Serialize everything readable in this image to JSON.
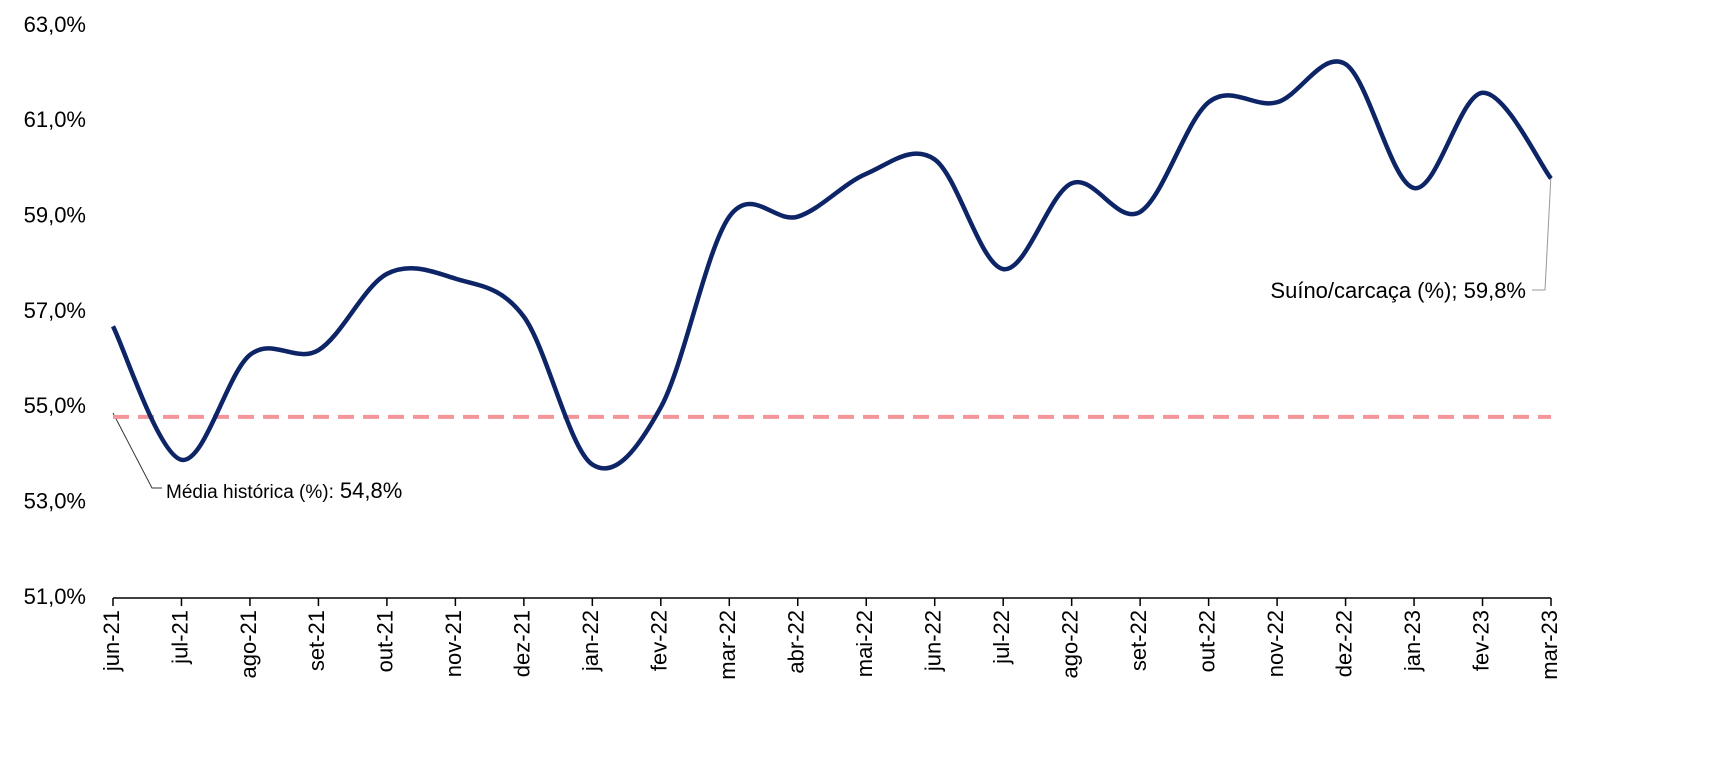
{
  "chart_data": {
    "type": "line",
    "categories": [
      "jun-21",
      "jul-21",
      "ago-21",
      "set-21",
      "out-21",
      "nov-21",
      "dez-21",
      "jan-22",
      "fev-22",
      "mar-22",
      "abr-22",
      "mai-22",
      "jun-22",
      "jul-22",
      "ago-22",
      "set-22",
      "out-22",
      "nov-22",
      "dez-22",
      "jan-23",
      "fev-23",
      "mar-23"
    ],
    "series": [
      {
        "name": "Suíno/carcaça (%)",
        "color": "#0d2466",
        "values": [
          56.7,
          53.9,
          56.1,
          56.2,
          57.8,
          57.7,
          56.9,
          53.8,
          55.0,
          59.0,
          59.0,
          59.9,
          60.2,
          57.9,
          59.7,
          59.1,
          61.4,
          61.4,
          62.2,
          59.6,
          61.6,
          59.8
        ]
      }
    ],
    "reference_line": {
      "value": 54.8,
      "color": "#f4959a",
      "label": "Média histórica (%):",
      "value_label": "54,8%"
    },
    "annotations": [
      {
        "text": "Suíno/carcaça (%); 59,8%"
      }
    ],
    "ylim": [
      51,
      63
    ],
    "yticks": [
      {
        "value": 51,
        "label": "51,0%"
      },
      {
        "value": 53,
        "label": "53,0%"
      },
      {
        "value": 55,
        "label": "55,0%"
      },
      {
        "value": 57,
        "label": "57,0%"
      },
      {
        "value": 59,
        "label": "59,0%"
      },
      {
        "value": 61,
        "label": "61,0%"
      },
      {
        "value": 63,
        "label": "63,0%"
      }
    ],
    "grid": false
  }
}
